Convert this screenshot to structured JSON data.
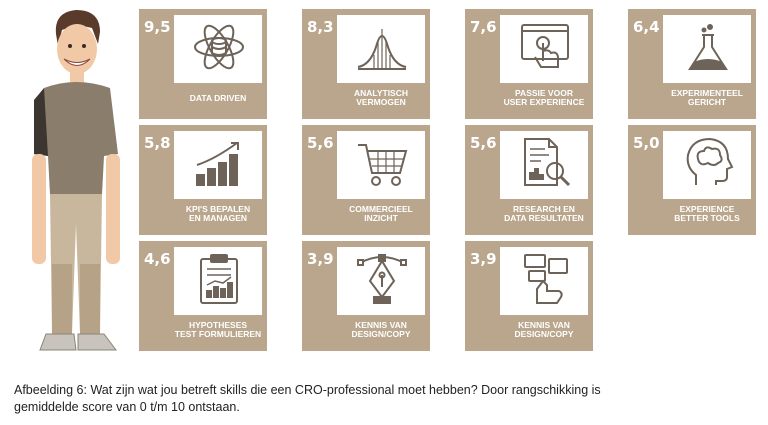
{
  "skills": [
    {
      "score": "9,5",
      "label": [
        "DATA DRIVEN"
      ],
      "icon": "atom-icon"
    },
    {
      "score": "8,3",
      "label": [
        "ANALYTISCH",
        "VERMOGEN"
      ],
      "icon": "bell-curve-icon"
    },
    {
      "score": "7,6",
      "label": [
        "PASSIE VOOR",
        "USER EXPERIENCE"
      ],
      "icon": "touch-screen-icon"
    },
    {
      "score": "6,4",
      "label": [
        "EXPERIMENTEEL",
        "GERICHT"
      ],
      "icon": "flask-icon"
    },
    {
      "score": "5,8",
      "label": [
        "KPI'S BEPALEN",
        "EN MANAGEN"
      ],
      "icon": "growth-chart-icon"
    },
    {
      "score": "5,6",
      "label": [
        "COMMERCIEEL",
        "INZICHT"
      ],
      "icon": "shopping-cart-icon"
    },
    {
      "score": "5,6",
      "label": [
        "RESEARCH EN",
        "DATA RESULTATEN"
      ],
      "icon": "report-magnifier-icon"
    },
    {
      "score": "5,0",
      "label": [
        "EXPERIENCE",
        "BETTER TOOLS"
      ],
      "icon": "brain-head-icon"
    },
    {
      "score": "4,6",
      "label": [
        "HYPOTHESES",
        "TEST FORMULIEREN"
      ],
      "icon": "clipboard-chart-icon"
    },
    {
      "score": "3,9",
      "label": [
        "KENNIS VAN",
        "DESIGN/COPY"
      ],
      "icon": "pen-nib-icon"
    },
    {
      "score": "3,9",
      "label": [
        "KENNIS VAN",
        "DESIGN/COPY"
      ],
      "icon": "hand-layout-icon"
    }
  ],
  "caption": {
    "line1": "Afbeelding 6:  Wat zijn wat jou betreft skills die een CRO-professional moet hebben? Door rangschikking is",
    "line2": "gemiddelde score van 0 t/m 10 ontstaan."
  },
  "colors": {
    "tile": "#b9a68d",
    "icon_stroke": "#6e6358",
    "shirt": "#8a7d6c",
    "pants": "#c8b79c"
  }
}
